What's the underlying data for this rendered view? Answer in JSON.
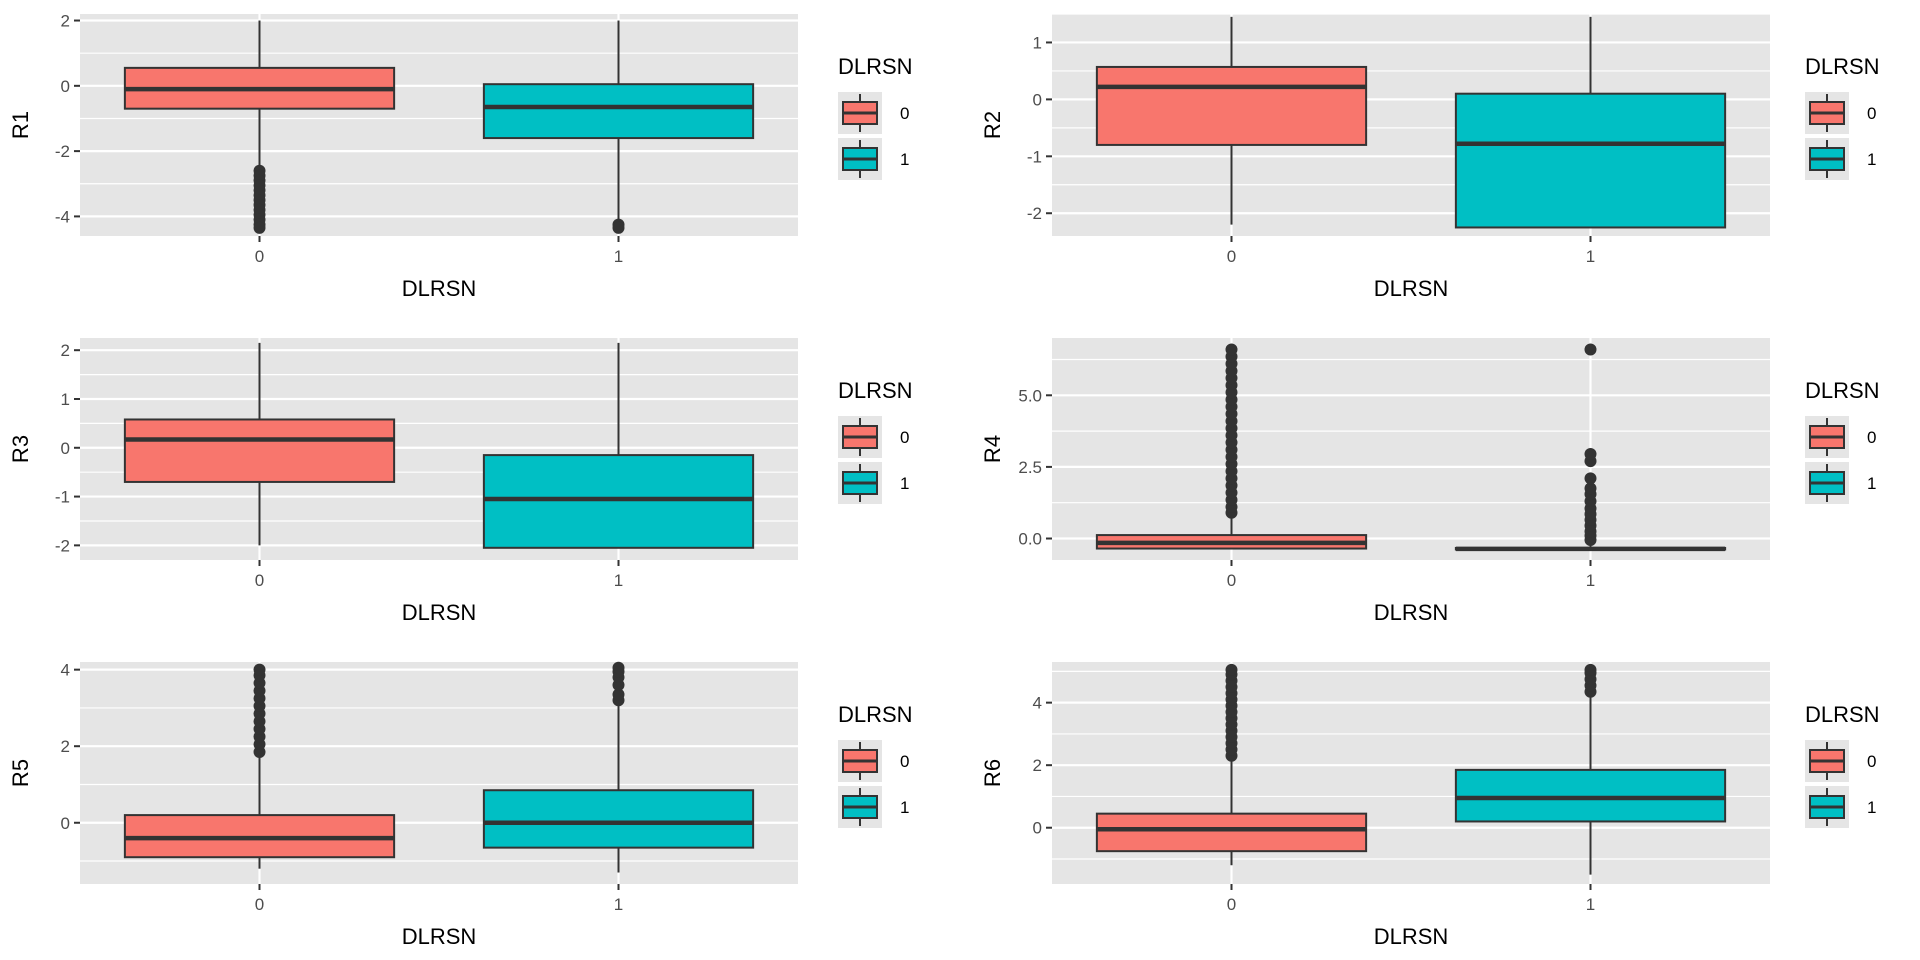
{
  "colors": {
    "panel_bg": "#e5e5e5",
    "grid": "#ffffff",
    "line": "#333333",
    "group_0": "#F8766D",
    "group_1": "#00BFC4"
  },
  "chart_data": [
    {
      "type": "box",
      "title": "",
      "xlabel": "DLRSN",
      "ylabel": "R1",
      "categories": [
        "0",
        "1"
      ],
      "ylim": [
        -4.6,
        2.2
      ],
      "yticks": [
        -4,
        -2,
        0,
        2
      ],
      "ytick_labels": [
        "-4",
        "-2",
        "0",
        "2"
      ],
      "grid": true,
      "legend": {
        "title": "DLRSN",
        "entries": [
          "0",
          "1"
        ],
        "position": "right"
      },
      "boxes": [
        {
          "category": "0",
          "min": -2.5,
          "q1": -0.7,
          "median": -0.1,
          "q3": 0.55,
          "max": 2.0,
          "outliers": [
            -2.6,
            -2.75,
            -2.9,
            -3.05,
            -3.2,
            -3.35,
            -3.5,
            -3.65,
            -3.8,
            -3.95,
            -4.1,
            -4.25,
            -4.35
          ]
        },
        {
          "category": "1",
          "min": -4.1,
          "q1": -1.6,
          "median": -0.65,
          "q3": 0.05,
          "max": 2.0,
          "outliers": [
            -4.25,
            -4.35
          ]
        }
      ]
    },
    {
      "type": "box",
      "title": "",
      "xlabel": "DLRSN",
      "ylabel": "R2",
      "categories": [
        "0",
        "1"
      ],
      "ylim": [
        -2.4,
        1.5
      ],
      "yticks": [
        -2,
        -1,
        0,
        1
      ],
      "ytick_labels": [
        "-2",
        "-1",
        "0",
        "1"
      ],
      "grid": true,
      "legend": {
        "title": "DLRSN",
        "entries": [
          "0",
          "1"
        ],
        "position": "right"
      },
      "boxes": [
        {
          "category": "0",
          "min": -2.2,
          "q1": -0.8,
          "median": 0.22,
          "q3": 0.57,
          "max": 1.45,
          "outliers": []
        },
        {
          "category": "1",
          "min": -2.25,
          "q1": -2.25,
          "median": -0.78,
          "q3": 0.1,
          "max": 1.45,
          "outliers": []
        }
      ]
    },
    {
      "type": "box",
      "title": "",
      "xlabel": "DLRSN",
      "ylabel": "R3",
      "categories": [
        "0",
        "1"
      ],
      "ylim": [
        -2.3,
        2.25
      ],
      "yticks": [
        -2,
        -1,
        0,
        1,
        2
      ],
      "ytick_labels": [
        "-2",
        "-1",
        "0",
        "1",
        "2"
      ],
      "grid": true,
      "legend": {
        "title": "DLRSN",
        "entries": [
          "0",
          "1"
        ],
        "position": "right"
      },
      "boxes": [
        {
          "category": "0",
          "min": -2.0,
          "q1": -0.7,
          "median": 0.17,
          "q3": 0.58,
          "max": 2.15,
          "outliers": []
        },
        {
          "category": "1",
          "min": -2.05,
          "q1": -2.05,
          "median": -1.05,
          "q3": -0.15,
          "max": 2.15,
          "outliers": []
        }
      ]
    },
    {
      "type": "box",
      "title": "",
      "xlabel": "DLRSN",
      "ylabel": "R4",
      "categories": [
        "0",
        "1"
      ],
      "ylim": [
        -0.75,
        7.0
      ],
      "yticks": [
        0,
        2.5,
        5
      ],
      "ytick_labels": [
        "0.0",
        "2.5",
        "5.0"
      ],
      "grid": true,
      "legend": {
        "title": "DLRSN",
        "entries": [
          "0",
          "1"
        ],
        "position": "right"
      },
      "boxes": [
        {
          "category": "0",
          "min": -0.35,
          "q1": -0.35,
          "median": -0.15,
          "q3": 0.12,
          "max": 0.8,
          "outliers": [
            0.9,
            1.1,
            1.35,
            1.6,
            1.85,
            2.1,
            2.35,
            2.6,
            2.85,
            3.1,
            3.35,
            3.6,
            3.85,
            4.1,
            4.35,
            4.6,
            4.85,
            5.1,
            5.35,
            5.6,
            5.85,
            6.1,
            6.35,
            6.6
          ]
        },
        {
          "category": "1",
          "min": -0.38,
          "q1": -0.38,
          "median": -0.36,
          "q3": -0.33,
          "max": -0.1,
          "outliers": [
            -0.05,
            0.1,
            0.25,
            0.45,
            0.65,
            0.85,
            1.05,
            1.3,
            1.55,
            1.75,
            2.1,
            2.7,
            2.95,
            6.6
          ]
        }
      ]
    },
    {
      "type": "box",
      "title": "",
      "xlabel": "DLRSN",
      "ylabel": "R5",
      "categories": [
        "0",
        "1"
      ],
      "ylim": [
        -1.6,
        4.2
      ],
      "yticks": [
        0,
        2,
        4
      ],
      "ytick_labels": [
        "0",
        "2",
        "4"
      ],
      "grid": true,
      "legend": {
        "title": "DLRSN",
        "entries": [
          "0",
          "1"
        ],
        "position": "right"
      },
      "boxes": [
        {
          "category": "0",
          "min": -1.2,
          "q1": -0.9,
          "median": -0.4,
          "q3": 0.2,
          "max": 1.75,
          "outliers": [
            1.85,
            2.05,
            2.25,
            2.45,
            2.65,
            2.85,
            3.05,
            3.25,
            3.45,
            3.65,
            3.85,
            4.0
          ]
        },
        {
          "category": "1",
          "min": -1.3,
          "q1": -0.65,
          "median": 0.0,
          "q3": 0.85,
          "max": 3.1,
          "outliers": [
            3.2,
            3.35,
            3.6,
            3.8,
            3.95,
            4.05
          ]
        }
      ]
    },
    {
      "type": "box",
      "title": "",
      "xlabel": "DLRSN",
      "ylabel": "R6",
      "categories": [
        "0",
        "1"
      ],
      "ylim": [
        -1.8,
        5.3
      ],
      "yticks": [
        0,
        2,
        4
      ],
      "ytick_labels": [
        "0",
        "2",
        "4"
      ],
      "grid": true,
      "legend": {
        "title": "DLRSN",
        "entries": [
          "0",
          "1"
        ],
        "position": "right"
      },
      "boxes": [
        {
          "category": "0",
          "min": -1.2,
          "q1": -0.75,
          "median": -0.05,
          "q3": 0.45,
          "max": 2.2,
          "outliers": [
            2.3,
            2.5,
            2.7,
            2.9,
            3.1,
            3.3,
            3.5,
            3.7,
            3.9,
            4.1,
            4.3,
            4.5,
            4.7,
            4.9,
            5.05
          ]
        },
        {
          "category": "1",
          "min": -1.5,
          "q1": 0.2,
          "median": 0.95,
          "q3": 1.85,
          "max": 4.2,
          "outliers": [
            4.35,
            4.55,
            4.75,
            4.95,
            5.05
          ]
        }
      ]
    }
  ]
}
